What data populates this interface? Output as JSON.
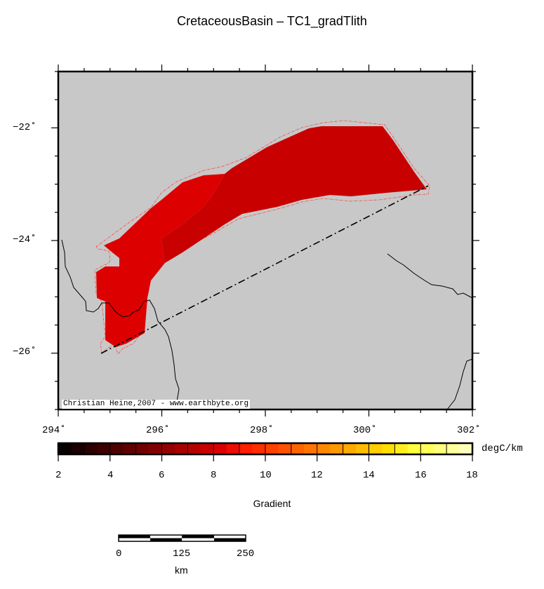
{
  "title": "CretaceousBasin – TC1_gradTlith",
  "map": {
    "region": {
      "lon": [
        294,
        302
      ],
      "lat": [
        -27,
        -21
      ]
    },
    "background_color": "#c8c8c8",
    "lon_labels": [
      "294˚",
      "296˚",
      "298˚",
      "300˚",
      "302˚"
    ],
    "lat_labels": [
      "−22˚",
      "−24˚",
      "−26˚"
    ],
    "credit": "Christian Heine,2007 - www.earthbyte.org",
    "fill_colors": {
      "high": "#dd0000",
      "low": "#c80000"
    },
    "outline_color": "#ff3333"
  },
  "colorbar": {
    "min": 2,
    "max": 18,
    "step": 0.5,
    "tick_labels": [
      "2",
      "4",
      "6",
      "8",
      "10",
      "12",
      "14",
      "16",
      "18"
    ],
    "unit": "degC/km",
    "label": "Gradient"
  },
  "scalebar": {
    "labels": [
      "0",
      "125",
      "250"
    ],
    "unit": "km"
  }
}
